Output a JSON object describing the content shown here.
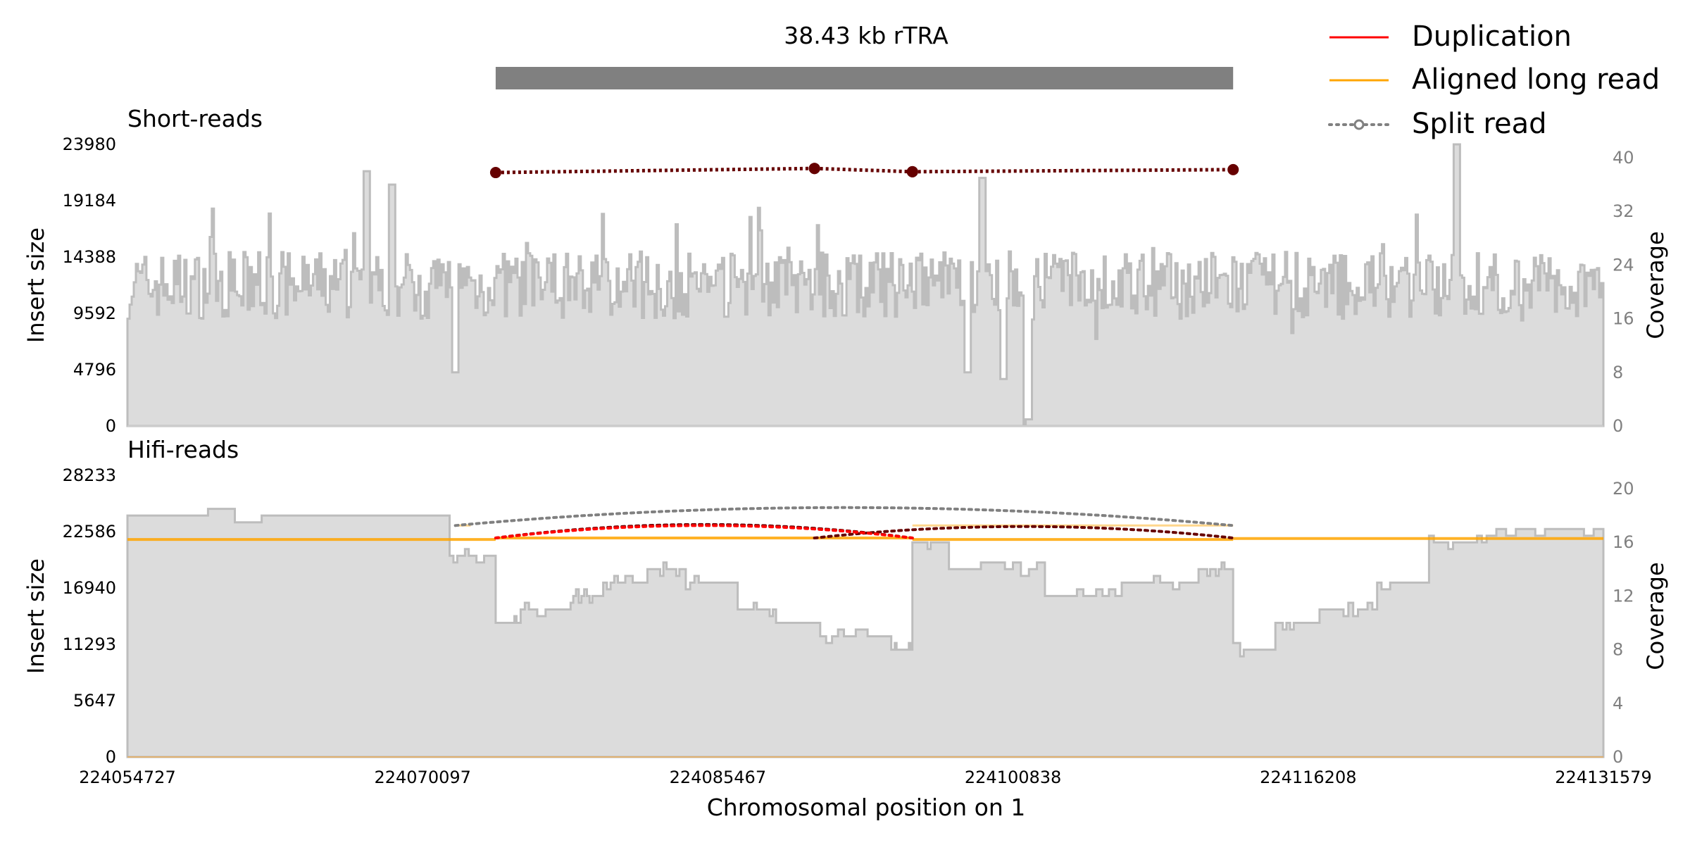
{
  "chart_data": {
    "type": "genome-track",
    "title": "38.43 kb rTRA",
    "xlabel": "Chromosomal position on 1",
    "xlim": [
      224054727,
      224131579
    ],
    "xticks": [
      224054727,
      224070097,
      224085467,
      224100838,
      224116208,
      224131579
    ],
    "xtick_labels": [
      "224054727",
      "224070097",
      "224085467",
      "224100838",
      "224116208",
      "224131579"
    ],
    "sv_region": [
      224073900,
      224112300
    ],
    "legend": {
      "placement": "top-right",
      "entries": [
        {
          "label": "Duplication",
          "color": "#ff0000",
          "style": "solid"
        },
        {
          "label": "Aligned long read",
          "color": "#ffa500",
          "style": "solid"
        },
        {
          "label": "Split read",
          "color": "#808080",
          "style": "dotted-marker"
        }
      ]
    },
    "panels": [
      {
        "name": "Short-reads",
        "ylabel": "Insert size",
        "y2label": "Coverage",
        "yticks": [
          0,
          4796,
          9592,
          14388,
          19184,
          23980
        ],
        "ytick_labels": [
          "0",
          "4796",
          "9592",
          "14388",
          "19184",
          "23980"
        ],
        "ylim": [
          0,
          23980
        ],
        "y2ticks": [
          0,
          8,
          16,
          24,
          32,
          40
        ],
        "y2tick_labels": [
          "0",
          "8",
          "16",
          "24",
          "32",
          "40"
        ],
        "y2lim": [
          0,
          42
        ],
        "coverage_base": 21,
        "coverage_variation": 5,
        "coverage_dips": [
          {
            "x": 224071800,
            "value": 8
          },
          {
            "x": 224101500,
            "value": 0
          },
          {
            "x": 224101700,
            "value": 1
          },
          {
            "x": 224098500,
            "value": 8
          },
          {
            "x": 224100300,
            "value": 7
          }
        ],
        "coverage_peaks": [
          {
            "x": 224067200,
            "value": 38
          },
          {
            "x": 224099300,
            "value": 37
          },
          {
            "x": 224124000,
            "value": 42
          },
          {
            "x": 224068500,
            "value": 36
          }
        ],
        "split_reads": [
          {
            "x1": 224073900,
            "y1": 21580,
            "x2": 224090500,
            "y2": 21930,
            "color": "#660000"
          },
          {
            "x1": 224090500,
            "y1": 21930,
            "x2": 224095600,
            "y2": 21650,
            "color": "#660000"
          },
          {
            "x1": 224095600,
            "y1": 21650,
            "x2": 224112300,
            "y2": 21830,
            "color": "#660000"
          }
        ]
      },
      {
        "name": "Hifi-reads",
        "ylabel": "Insert size",
        "y2label": "Coverage",
        "yticks": [
          0,
          5647,
          11293,
          16940,
          22586,
          28233
        ],
        "ytick_labels": [
          "0",
          "5647",
          "11293",
          "16940",
          "22586",
          "28233"
        ],
        "ylim": [
          0,
          28233
        ],
        "y2ticks": [
          0,
          4,
          8,
          12,
          16,
          20
        ],
        "y2tick_labels": [
          "0",
          "4",
          "8",
          "12",
          "16",
          "20"
        ],
        "y2lim": [
          0,
          21
        ],
        "coverage_segments": [
          {
            "x0": 224054727,
            "x1": 224071500,
            "value": 18
          },
          {
            "x0": 224071500,
            "x1": 224073900,
            "value": 15
          },
          {
            "x0": 224073900,
            "x1": 224075200,
            "value": 10
          },
          {
            "x0": 224075200,
            "x1": 224077800,
            "value": 11
          },
          {
            "x0": 224077800,
            "x1": 224079500,
            "value": 12
          },
          {
            "x0": 224079500,
            "x1": 224081800,
            "value": 13
          },
          {
            "x0": 224081800,
            "x1": 224083800,
            "value": 14
          },
          {
            "x0": 224083800,
            "x1": 224086500,
            "value": 13
          },
          {
            "x0": 224086500,
            "x1": 224088500,
            "value": 11
          },
          {
            "x0": 224088500,
            "x1": 224090800,
            "value": 10
          },
          {
            "x0": 224090800,
            "x1": 224094500,
            "value": 9
          },
          {
            "x0": 224094500,
            "x1": 224095600,
            "value": 8
          },
          {
            "x0": 224095600,
            "x1": 224097500,
            "value": 16
          },
          {
            "x0": 224097500,
            "x1": 224102500,
            "value": 14
          },
          {
            "x0": 224102500,
            "x1": 224106500,
            "value": 12
          },
          {
            "x0": 224106500,
            "x1": 224110500,
            "value": 13
          },
          {
            "x0": 224110500,
            "x1": 224112300,
            "value": 14
          },
          {
            "x0": 224112300,
            "x1": 224114500,
            "value": 8
          },
          {
            "x0": 224114500,
            "x1": 224116800,
            "value": 10
          },
          {
            "x0": 224116800,
            "x1": 224119800,
            "value": 11
          },
          {
            "x0": 224119800,
            "x1": 224122500,
            "value": 13
          },
          {
            "x0": 224122500,
            "x1": 224125500,
            "value": 16
          },
          {
            "x0": 224125500,
            "x1": 224131579,
            "value": 17
          }
        ],
        "aligned_long_reads": [
          {
            "x1": 224054727,
            "x2": 224073900,
            "y": 21800
          },
          {
            "x1": 224073900,
            "x2": 224095600,
            "y": 21950
          },
          {
            "x1": 224095600,
            "x2": 224112300,
            "y": 21800
          },
          {
            "x1": 224112300,
            "x2": 224131579,
            "y": 21900
          },
          {
            "x1": 224071800,
            "x2": 224072600,
            "y": 23200
          },
          {
            "x1": 224095600,
            "x2": 224112300,
            "y": 23200
          }
        ],
        "split_reads": [
          {
            "x1": 224071800,
            "x2": 224112300,
            "y": 23200,
            "peak": 25000,
            "color": "#808080"
          },
          {
            "x1": 224073900,
            "x2": 224095600,
            "y": 21950,
            "peak": 23300,
            "color": "#660000"
          },
          {
            "x1": 224090500,
            "x2": 224112300,
            "y": 21950,
            "peak": 23100,
            "color": "#660000"
          },
          {
            "x1": 224073900,
            "x2": 224095600,
            "y": 21950,
            "peak": 23200,
            "color": "#ff0000"
          }
        ]
      }
    ]
  }
}
